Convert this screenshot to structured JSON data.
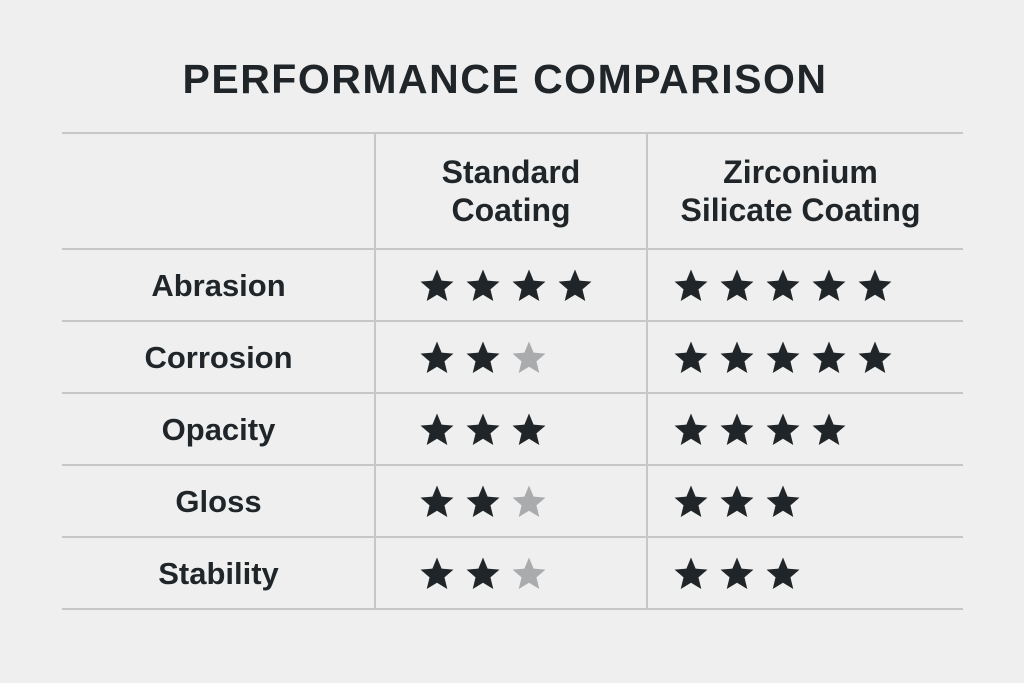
{
  "title": "PERFORMANCE COMPARISON",
  "columns": [
    {
      "lines": [
        "Standard",
        "Coating"
      ]
    },
    {
      "lines": [
        "Zirconium",
        "Silicate Coating"
      ]
    }
  ],
  "colors": {
    "filled_star": "#1f2528",
    "empty_star": "#a9abad"
  },
  "chart_data": {
    "type": "table",
    "title": "PERFORMANCE COMPARISON",
    "columns": [
      "Standard Coating",
      "Zirconium Silicate Coating"
    ],
    "rows": [
      {
        "label": "Abrasion",
        "ratings": [
          4,
          5
        ],
        "stars_shown": [
          4,
          5
        ]
      },
      {
        "label": "Corrosion",
        "ratings": [
          2,
          5
        ],
        "stars_shown": [
          3,
          5
        ]
      },
      {
        "label": "Opacity",
        "ratings": [
          3,
          4
        ],
        "stars_shown": [
          3,
          4
        ]
      },
      {
        "label": "Gloss",
        "ratings": [
          2,
          3
        ],
        "stars_shown": [
          3,
          3
        ]
      },
      {
        "label": "Stability",
        "ratings": [
          2,
          3
        ],
        "stars_shown": [
          3,
          3
        ]
      }
    ]
  }
}
